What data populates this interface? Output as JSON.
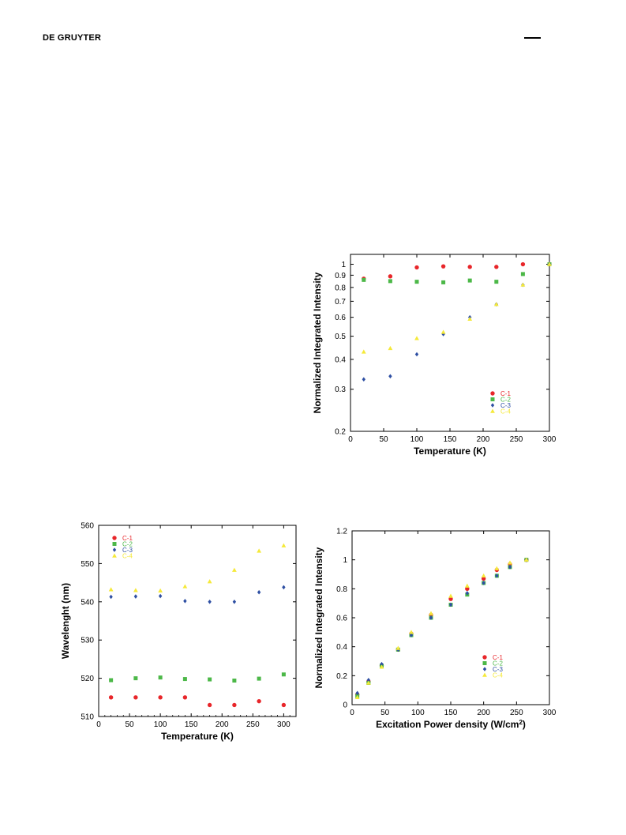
{
  "header": {
    "brand": "DE GRUYTER"
  },
  "colors": {
    "C-1": "#e8262a",
    "C-2": "#4cb848",
    "C-3": "#2e4fa3",
    "C-4": "#f5e93a"
  },
  "chart_data": [
    {
      "id": "chart1",
      "type": "scatter",
      "xlabel": "Temperature (K)",
      "ylabel": "Normalized Integrated Intensity",
      "xlim": [
        0,
        300
      ],
      "ylim": [
        0.2,
        1.1
      ],
      "yscale": "log",
      "xticks": [
        0,
        50,
        100,
        150,
        200,
        250,
        300
      ],
      "yticks": [
        0.2,
        0.3,
        0.4,
        0.5,
        0.6,
        0.7,
        0.8,
        0.9,
        1
      ],
      "ytick_labels": [
        "0.2",
        "0.3",
        "0.4",
        "0.5",
        "0.6",
        "0.7",
        "0.8",
        "0.9",
        "1"
      ],
      "legend_position": "bottom-right",
      "grid": false,
      "series": [
        {
          "name": "C-1",
          "x": [
            20,
            60,
            100,
            140,
            180,
            220,
            260,
            300
          ],
          "y": [
            0.87,
            0.89,
            0.97,
            0.98,
            0.975,
            0.975,
            1.0,
            1.0
          ]
        },
        {
          "name": "C-2",
          "x": [
            20,
            60,
            100,
            140,
            180,
            220,
            260,
            300
          ],
          "y": [
            0.86,
            0.85,
            0.845,
            0.84,
            0.855,
            0.845,
            0.91,
            1.0
          ]
        },
        {
          "name": "C-3",
          "x": [
            20,
            60,
            100,
            140,
            180,
            220,
            260,
            300
          ],
          "y": [
            0.33,
            0.34,
            0.42,
            0.51,
            0.6,
            0.68,
            0.82,
            1.0
          ]
        },
        {
          "name": "C-4",
          "x": [
            20,
            60,
            100,
            140,
            180,
            220,
            260,
            300
          ],
          "y": [
            0.43,
            0.445,
            0.49,
            0.52,
            0.59,
            0.68,
            0.82,
            1.0
          ]
        }
      ]
    },
    {
      "id": "chart2",
      "type": "scatter",
      "xlabel": "Temperature (K)",
      "ylabel": "Wavelenght (nm)",
      "xlim": [
        0,
        320
      ],
      "ylim": [
        510,
        560
      ],
      "xticks": [
        0,
        50,
        100,
        150,
        200,
        250,
        300
      ],
      "yticks": [
        510,
        520,
        530,
        540,
        550,
        560
      ],
      "ytick_labels": [
        "510",
        "520",
        "530",
        "540",
        "550",
        "560"
      ],
      "legend_position": "top-left",
      "grid": false,
      "series": [
        {
          "name": "C-1",
          "x": [
            20,
            60,
            100,
            140,
            180,
            220,
            260,
            300
          ],
          "y": [
            515,
            515,
            515,
            515,
            513,
            513,
            514,
            513
          ]
        },
        {
          "name": "C-2",
          "x": [
            20,
            60,
            100,
            140,
            180,
            220,
            260,
            300
          ],
          "y": [
            519.5,
            520,
            520.2,
            519.8,
            519.7,
            519.4,
            519.9,
            521
          ]
        },
        {
          "name": "C-3",
          "x": [
            20,
            60,
            100,
            140,
            180,
            220,
            260,
            300
          ],
          "y": [
            541.3,
            541.4,
            541.5,
            540.2,
            540,
            540,
            542.5,
            543.8
          ]
        },
        {
          "name": "C-4",
          "x": [
            20,
            60,
            100,
            140,
            180,
            220,
            260,
            300
          ],
          "y": [
            543.2,
            543,
            542.9,
            544,
            545.3,
            548.3,
            553.3,
            554.7
          ]
        }
      ]
    },
    {
      "id": "chart3",
      "type": "scatter",
      "xlabel": "Excitation Power density (W/cm",
      "xlabel_sup": "2",
      "xlabel_end": ")",
      "ylabel": "Normalized Integrated Intensity",
      "xlim": [
        0,
        300
      ],
      "ylim": [
        0,
        1.2
      ],
      "xticks": [
        0,
        50,
        100,
        150,
        200,
        250,
        300
      ],
      "yticks": [
        0,
        0.2,
        0.4,
        0.6,
        0.8,
        1,
        1.2
      ],
      "ytick_labels": [
        "0",
        "0.2",
        "0.4",
        "0.6",
        "0.8",
        "1",
        "1.2"
      ],
      "legend_position": "bottom-right",
      "grid": false,
      "series": [
        {
          "name": "C-1",
          "x": [
            8,
            25,
            45,
            70,
            90,
            120,
            150,
            175,
            200,
            220,
            240,
            265
          ],
          "y": [
            0.07,
            0.16,
            0.27,
            0.38,
            0.49,
            0.62,
            0.73,
            0.8,
            0.87,
            0.93,
            0.97,
            1.0
          ]
        },
        {
          "name": "C-2",
          "x": [
            8,
            25,
            45,
            70,
            90,
            120,
            150,
            175,
            200,
            220,
            240,
            265
          ],
          "y": [
            0.06,
            0.15,
            0.27,
            0.38,
            0.48,
            0.6,
            0.69,
            0.76,
            0.84,
            0.89,
            0.95,
            1.0
          ]
        },
        {
          "name": "C-3",
          "x": [
            8,
            25,
            45,
            70,
            90,
            120,
            150,
            175,
            200,
            220,
            240,
            265
          ],
          "y": [
            0.08,
            0.17,
            0.28,
            0.38,
            0.48,
            0.6,
            0.69,
            0.77,
            0.84,
            0.89,
            0.95,
            1.0
          ]
        },
        {
          "name": "C-4",
          "x": [
            8,
            25,
            45,
            70,
            90,
            120,
            150,
            175,
            200,
            220,
            240,
            265
          ],
          "y": [
            0.05,
            0.15,
            0.26,
            0.39,
            0.5,
            0.63,
            0.75,
            0.82,
            0.89,
            0.94,
            0.98,
            1.0
          ]
        }
      ]
    }
  ]
}
